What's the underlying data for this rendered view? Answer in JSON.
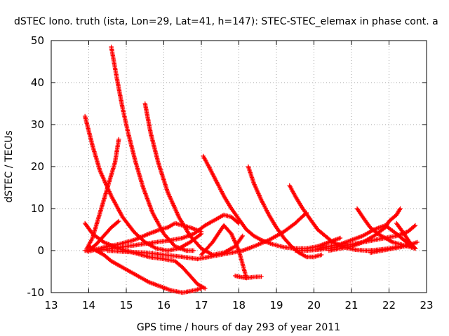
{
  "chart_data": {
    "type": "scatter",
    "title": "dSTEC Iono. truth (ista, Lon=29, Lat=41, h=147): STEC-STEC_elemax in phase cont. a",
    "xlabel": "GPS time / hours of day 293 of year 2011",
    "ylabel": "dSTEC  / TECUs",
    "xlim": [
      13,
      23
    ],
    "ylim": [
      -10,
      50
    ],
    "x_ticks": [
      13,
      14,
      15,
      16,
      17,
      18,
      19,
      20,
      21,
      22,
      23
    ],
    "y_ticks": [
      -10,
      0,
      10,
      20,
      30,
      40,
      50
    ],
    "grid": true,
    "marker": "plus",
    "color": "#ff0000",
    "series": [
      {
        "x": [
          13.9,
          14.1,
          14.3,
          14.6,
          14.9,
          15.2,
          15.5,
          15.8,
          16.1,
          16.4,
          16.7,
          17.0
        ],
        "y": [
          32,
          25,
          19,
          13,
          8,
          4.5,
          2,
          0.5,
          0,
          0.5,
          2,
          4
        ]
      },
      {
        "x": [
          13.95,
          14.1,
          14.3,
          14.5,
          14.7,
          14.8
        ],
        "y": [
          0.5,
          3,
          9,
          15,
          21,
          26.5
        ]
      },
      {
        "x": [
          14.6,
          14.75,
          14.9,
          15.05,
          15.25,
          15.45,
          15.7,
          16.0,
          16.3,
          16.6,
          16.8
        ],
        "y": [
          48.5,
          41,
          34,
          28,
          21,
          15,
          9,
          4,
          1,
          0,
          0
        ]
      },
      {
        "x": [
          15.5,
          15.65,
          15.85,
          16.1,
          16.4,
          16.7,
          17.0,
          17.3,
          17.6,
          17.9,
          18.1
        ],
        "y": [
          35,
          28,
          21,
          14,
          8,
          3.5,
          0.5,
          -1,
          -0.5,
          1,
          3.5
        ]
      },
      {
        "x": [
          13.9,
          14.1,
          14.4,
          14.8,
          15.2,
          15.6,
          16.0,
          16.3,
          16.5,
          16.7,
          16.9,
          17.1
        ],
        "y": [
          6.5,
          4,
          2,
          0.5,
          -0.5,
          -1.5,
          -2,
          -2.5,
          -4,
          -6,
          -8,
          -9
        ]
      },
      {
        "x": [
          13.9,
          14.0,
          14.2,
          14.5,
          14.8,
          15.2,
          15.6,
          15.9,
          16.1,
          16.3,
          16.5,
          16.7,
          17.0
        ],
        "y": [
          0,
          -0.2,
          0.3,
          1,
          1.5,
          2.5,
          4,
          5,
          5.5,
          6.5,
          6,
          5.5,
          4.5
        ]
      },
      {
        "x": [
          14.0,
          14.2,
          14.4,
          14.6,
          14.8,
          15.0,
          15.3,
          15.6,
          15.9,
          16.2,
          16.5,
          16.8,
          17.0
        ],
        "y": [
          1,
          0,
          -1,
          -2.5,
          -3.5,
          -4.5,
          -6,
          -7.5,
          -8.5,
          -9.5,
          -10,
          -9.5,
          -9
        ]
      },
      {
        "x": [
          14.0,
          14.2,
          14.4,
          14.6,
          14.8
        ],
        "y": [
          0,
          1.5,
          3.5,
          5.5,
          7
        ]
      },
      {
        "x": [
          14.2,
          14.6,
          15.0,
          15.4,
          15.8,
          16.2,
          16.5,
          16.8,
          17.1,
          17.4,
          17.6,
          17.8,
          18.0
        ],
        "y": [
          0,
          0.5,
          1,
          1.5,
          2,
          2.5,
          3,
          4,
          6,
          7.5,
          8.5,
          8,
          6.5
        ]
      },
      {
        "x": [
          14.5,
          15.0,
          15.5,
          16.0,
          16.5,
          16.9,
          17.2,
          17.5,
          17.8,
          18.1,
          18.4,
          18.8,
          19.2,
          19.5,
          19.8
        ],
        "y": [
          0,
          -0.3,
          -0.5,
          -1,
          -1.5,
          -2,
          -1.5,
          -1,
          -0.5,
          0,
          1,
          2.5,
          4.5,
          6.5,
          9
        ]
      },
      {
        "x": [
          17.05,
          17.2,
          17.4,
          17.6,
          17.8,
          18.0,
          18.2,
          18.4,
          18.6,
          18.9,
          19.2,
          19.5,
          19.8,
          20.1,
          20.4,
          20.7
        ],
        "y": [
          22.5,
          20,
          16.5,
          13,
          10,
          7.5,
          5,
          3.5,
          2.5,
          1.5,
          0.8,
          0.5,
          0.5,
          1,
          2,
          3
        ]
      },
      {
        "x": [
          17.0,
          17.3,
          17.6,
          17.8,
          18.0,
          18.2
        ],
        "y": [
          -1,
          2,
          6,
          4,
          0,
          -6.5
        ]
      },
      {
        "x": [
          17.9,
          18.05,
          18.2,
          18.4,
          18.6
        ],
        "y": [
          -6,
          -6.3,
          -6.5,
          -6.3,
          -6.2
        ]
      },
      {
        "x": [
          18.25,
          18.4,
          18.6,
          18.8,
          19.0,
          19.2,
          19.4,
          19.6,
          19.8,
          20.0,
          20.2
        ],
        "y": [
          20,
          16,
          12,
          8.5,
          5.5,
          3,
          1,
          -0.5,
          -1.5,
          -1.5,
          -1
        ]
      },
      {
        "x": [
          19.35,
          19.5,
          19.7,
          19.9,
          20.1,
          20.3,
          20.5,
          20.8,
          21.1,
          21.4,
          21.7,
          22.0,
          22.3,
          22.6
        ],
        "y": [
          15.5,
          13,
          10,
          7.5,
          5,
          3.5,
          2,
          0.8,
          0.2,
          0,
          0.2,
          0.5,
          1,
          1.5
        ]
      },
      {
        "x": [
          19.5,
          19.8,
          20.1,
          20.4,
          20.7,
          21.0,
          21.3,
          21.6,
          21.9,
          22.2,
          22.5,
          22.7
        ],
        "y": [
          0,
          0,
          0.2,
          0.5,
          1,
          1.5,
          2,
          2.5,
          3,
          3.5,
          4.5,
          6
        ]
      },
      {
        "x": [
          20.1,
          20.4,
          20.7,
          21.0,
          21.3,
          21.6,
          21.9,
          22.2,
          22.4,
          22.6,
          22.7
        ],
        "y": [
          0.5,
          1,
          1.5,
          2.5,
          3.5,
          5,
          6,
          4,
          2.5,
          1,
          0.5
        ]
      },
      {
        "x": [
          20.4,
          20.7,
          21.0,
          21.3,
          21.6,
          21.9,
          22.0,
          22.2,
          22.3
        ],
        "y": [
          0,
          0.5,
          1,
          2,
          3.5,
          5.5,
          7,
          8.5,
          10
        ]
      },
      {
        "x": [
          21.15,
          21.3,
          21.5,
          21.7,
          21.9,
          22.1,
          22.3,
          22.5,
          22.7
        ],
        "y": [
          10,
          8,
          5.5,
          4,
          3,
          2,
          1.5,
          1,
          0.5
        ]
      },
      {
        "x": [
          21.5,
          21.8,
          22.1,
          22.4,
          22.6,
          22.75
        ],
        "y": [
          -0.5,
          0,
          0.5,
          1,
          1.5,
          2
        ]
      },
      {
        "x": [
          22.2,
          22.4,
          22.55,
          22.7
        ],
        "y": [
          6.5,
          4,
          2,
          0.5
        ]
      }
    ]
  }
}
